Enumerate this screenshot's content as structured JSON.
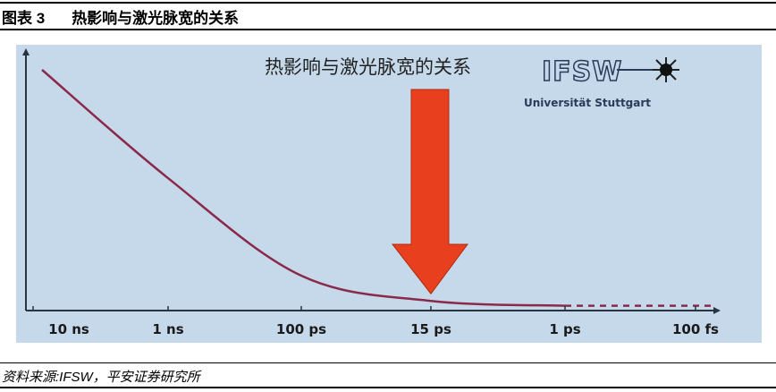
{
  "header": {
    "figure_label": "图表 3",
    "title": "热影响与激光脉宽的关系"
  },
  "source": "资料来源:IFSW，平安证券研究所",
  "logo": {
    "text": "IFSW",
    "subtext": "Universität Stuttgart"
  },
  "chart_data": {
    "type": "line",
    "title": "热影响与激光脉宽的关系",
    "xlabel": "",
    "ylabel": "",
    "categories": [
      "10 ns",
      "1 ns",
      "100 ps",
      "15 ps",
      "1 ps",
      "100 fs"
    ],
    "series": [
      {
        "values": [
          1.0,
          0.55,
          0.145,
          0.04,
          0.02,
          0.02
        ],
        "line_style": [
          "solid",
          "solid",
          "solid",
          "solid",
          "solid",
          "dashed"
        ]
      }
    ],
    "ylim": [
      0,
      1
    ],
    "grid": false,
    "legend": "none",
    "annotation": {
      "type": "arrow",
      "points_to": "15 ps",
      "color": "#e8401e"
    },
    "colors": {
      "curve": "#8a2a4a",
      "background": "#c6d9ea",
      "axis": "#2a3440"
    }
  }
}
